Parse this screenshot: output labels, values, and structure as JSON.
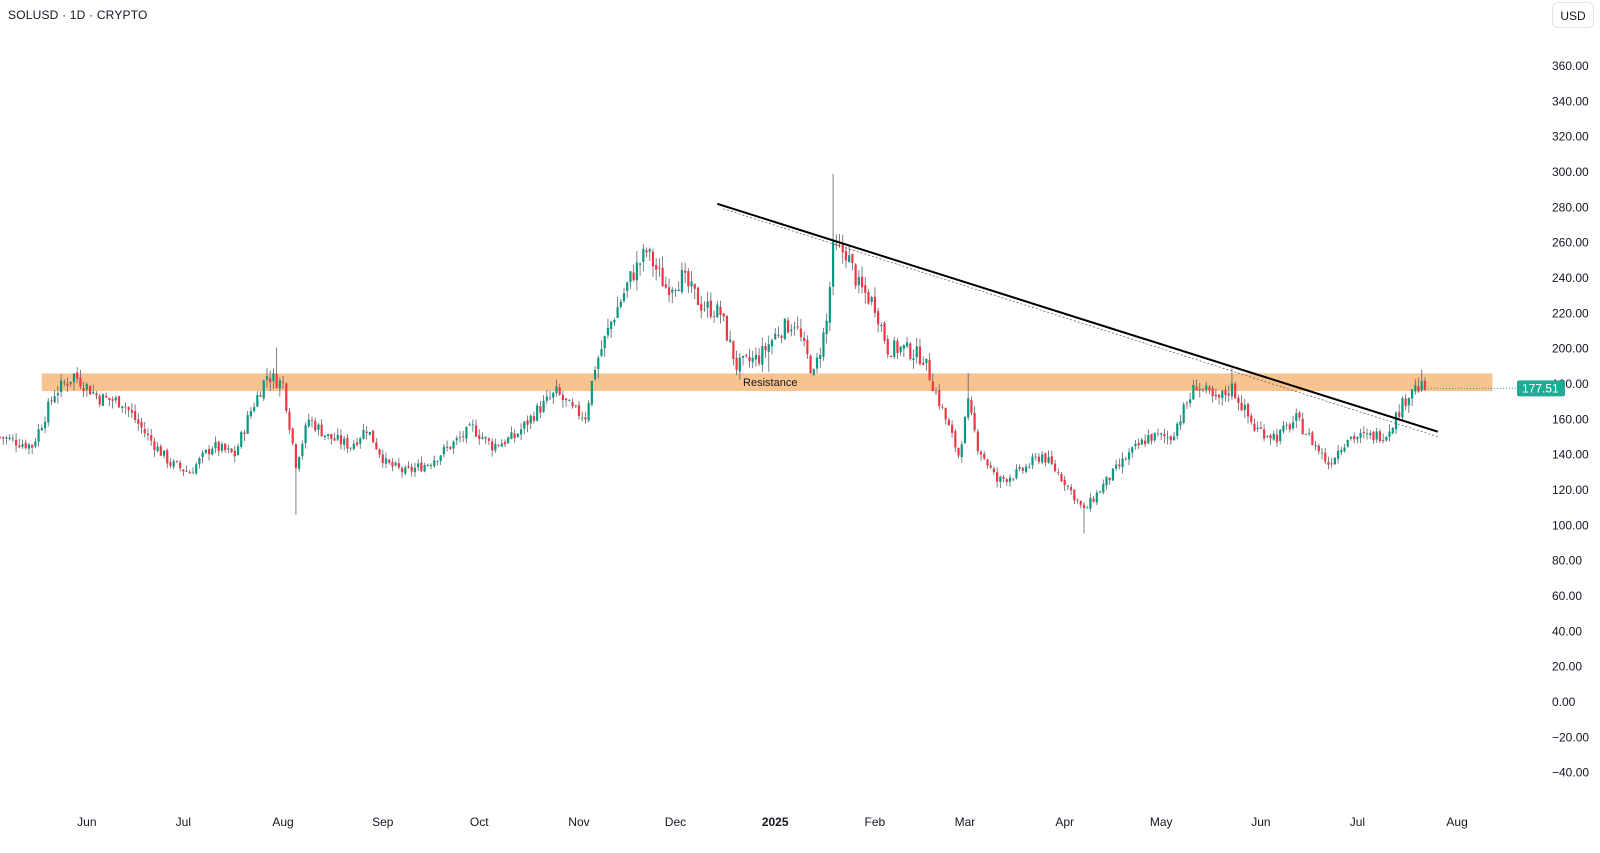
{
  "header": {
    "symbol_title": "SOLUSD · 1D · CRYPTO",
    "currency": "USD"
  },
  "colors": {
    "up_candle": "#089981",
    "down_candle": "#f23645",
    "resistance_band": "#f7b97a",
    "trendline": "#000000",
    "last_price_tag": "#22ab94"
  },
  "chart_data": {
    "type": "candlestick",
    "symbol": "SOLUSD",
    "interval": "1D",
    "ylim": [
      -50,
      380
    ],
    "y_ticks": [
      "-40.00",
      "-20.00",
      "0.00",
      "20.00",
      "40.00",
      "60.00",
      "80.00",
      "100.00",
      "120.00",
      "140.00",
      "160.00",
      "180.00",
      "200.00",
      "220.00",
      "240.00",
      "260.00",
      "280.00",
      "300.00",
      "320.00",
      "340.00",
      "360.00"
    ],
    "x_ticks": [
      {
        "label": "Jun",
        "date": "2024-06-01"
      },
      {
        "label": "Jul",
        "date": "2024-07-01"
      },
      {
        "label": "Aug",
        "date": "2024-08-01"
      },
      {
        "label": "Sep",
        "date": "2024-09-01"
      },
      {
        "label": "Oct",
        "date": "2024-10-01"
      },
      {
        "label": "Nov",
        "date": "2024-11-01"
      },
      {
        "label": "Dec",
        "date": "2024-12-01"
      },
      {
        "label": "2025",
        "date": "2025-01-01",
        "bold": true
      },
      {
        "label": "Feb",
        "date": "2025-02-01"
      },
      {
        "label": "Mar",
        "date": "2025-03-01"
      },
      {
        "label": "Apr",
        "date": "2025-04-01"
      },
      {
        "label": "May",
        "date": "2025-05-01"
      },
      {
        "label": "Jun",
        "date": "2025-06-01"
      },
      {
        "label": "Jul",
        "date": "2025-07-01"
      },
      {
        "label": "Aug",
        "date": "2025-08-01"
      }
    ],
    "xlim": [
      "2024-05-05",
      "2025-08-19"
    ],
    "price_path": [
      [
        "2024-05-05",
        150
      ],
      [
        "2024-05-15",
        145
      ],
      [
        "2024-05-22",
        175
      ],
      [
        "2024-05-28",
        185
      ],
      [
        "2024-06-05",
        172
      ],
      [
        "2024-06-12",
        170
      ],
      [
        "2024-06-20",
        150
      ],
      [
        "2024-06-27",
        135
      ],
      [
        "2024-07-03",
        130
      ],
      [
        "2024-07-10",
        145
      ],
      [
        "2024-07-17",
        140
      ],
      [
        "2024-07-22",
        165
      ],
      [
        "2024-07-27",
        185
      ],
      [
        "2024-08-01",
        180
      ],
      [
        "2024-08-05",
        135
      ],
      [
        "2024-08-09",
        160
      ],
      [
        "2024-08-15",
        150
      ],
      [
        "2024-08-22",
        145
      ],
      [
        "2024-08-27",
        155
      ],
      [
        "2024-09-02",
        135
      ],
      [
        "2024-09-08",
        130
      ],
      [
        "2024-09-15",
        135
      ],
      [
        "2024-09-22",
        145
      ],
      [
        "2024-09-29",
        155
      ],
      [
        "2024-10-05",
        145
      ],
      [
        "2024-10-12",
        150
      ],
      [
        "2024-10-19",
        165
      ],
      [
        "2024-10-25",
        175
      ],
      [
        "2024-10-30",
        165
      ],
      [
        "2024-11-03",
        162
      ],
      [
        "2024-11-06",
        190
      ],
      [
        "2024-11-11",
        215
      ],
      [
        "2024-11-17",
        240
      ],
      [
        "2024-11-22",
        255
      ],
      [
        "2024-11-28",
        235
      ],
      [
        "2024-12-03",
        240
      ],
      [
        "2024-12-09",
        225
      ],
      [
        "2024-12-15",
        220
      ],
      [
        "2024-12-20",
        190
      ],
      [
        "2024-12-27",
        195
      ],
      [
        "2025-01-02",
        210
      ],
      [
        "2025-01-07",
        215
      ],
      [
        "2025-01-13",
        185
      ],
      [
        "2025-01-17",
        215
      ],
      [
        "2025-01-19",
        255
      ],
      [
        "2025-01-23",
        255
      ],
      [
        "2025-01-27",
        235
      ],
      [
        "2025-02-01",
        225
      ],
      [
        "2025-02-05",
        200
      ],
      [
        "2025-02-10",
        200
      ],
      [
        "2025-02-16",
        195
      ],
      [
        "2025-02-21",
        170
      ],
      [
        "2025-02-27",
        140
      ],
      [
        "2025-03-02",
        168
      ],
      [
        "2025-03-05",
        145
      ],
      [
        "2025-03-11",
        125
      ],
      [
        "2025-03-18",
        130
      ],
      [
        "2025-03-25",
        140
      ],
      [
        "2025-04-01",
        125
      ],
      [
        "2025-04-07",
        108
      ],
      [
        "2025-04-14",
        125
      ],
      [
        "2025-04-21",
        140
      ],
      [
        "2025-04-27",
        150
      ],
      [
        "2025-05-04",
        150
      ],
      [
        "2025-05-08",
        165
      ],
      [
        "2025-05-12",
        180
      ],
      [
        "2025-05-18",
        170
      ],
      [
        "2025-05-23",
        178
      ],
      [
        "2025-05-30",
        155
      ],
      [
        "2025-06-06",
        150
      ],
      [
        "2025-06-12",
        160
      ],
      [
        "2025-06-18",
        145
      ],
      [
        "2025-06-22",
        135
      ],
      [
        "2025-06-28",
        150
      ],
      [
        "2025-07-04",
        150
      ],
      [
        "2025-07-10",
        152
      ],
      [
        "2025-07-14",
        165
      ],
      [
        "2025-07-18",
        178
      ],
      [
        "2025-07-22",
        177.51
      ]
    ],
    "candles_note": "",
    "last_price": 177.51,
    "last_price_label": "177.51",
    "resistance_zone": {
      "label": "Resistance",
      "low": 176,
      "high": 186,
      "start": "2024-05-18",
      "end": "2025-08-12"
    },
    "trendline": {
      "start": [
        "2024-12-14",
        282
      ],
      "end": [
        "2025-07-26",
        153
      ]
    },
    "grid": false,
    "legend": "none"
  }
}
